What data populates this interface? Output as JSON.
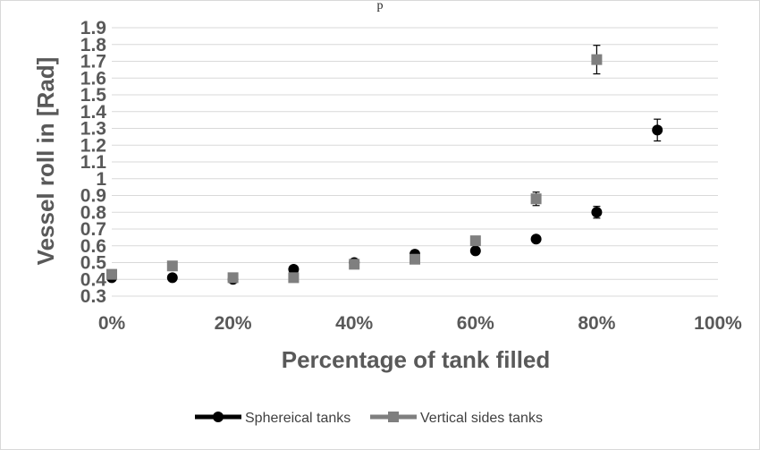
{
  "chart_data": {
    "type": "scatter",
    "title_fragment": "p",
    "xlabel": "Percentage of tank filled",
    "ylabel": "Vessel roll in [Rad]",
    "xlim": [
      0,
      100
    ],
    "ylim": [
      0.3,
      1.9
    ],
    "x_ticks": [
      "0%",
      "20%",
      "40%",
      "60%",
      "80%",
      "100%"
    ],
    "y_ticks": [
      "0.3",
      "0.4",
      "0.5",
      "0.6",
      "0.7",
      "0.8",
      "0.9",
      "1",
      "1.1",
      "1.2",
      "1.3",
      "1.4",
      "1.5",
      "1.6",
      "1.7",
      "1.8",
      "1.9"
    ],
    "grid": "horizontal",
    "legend_position": "bottom",
    "series": [
      {
        "name": "Sphereical tanks",
        "marker": "circle",
        "color": "#000000",
        "points": [
          {
            "x": 0,
            "y": 0.41
          },
          {
            "x": 10,
            "y": 0.41
          },
          {
            "x": 20,
            "y": 0.4
          },
          {
            "x": 30,
            "y": 0.46
          },
          {
            "x": 40,
            "y": 0.5
          },
          {
            "x": 50,
            "y": 0.55
          },
          {
            "x": 60,
            "y": 0.57
          },
          {
            "x": 70,
            "y": 0.64
          },
          {
            "x": 80,
            "y": 0.8,
            "err": 0.035
          },
          {
            "x": 90,
            "y": 1.29,
            "err": 0.065
          }
        ]
      },
      {
        "name": "Vertical sides tanks",
        "marker": "square",
        "color": "#7f7f7f",
        "points": [
          {
            "x": 0,
            "y": 0.43
          },
          {
            "x": 10,
            "y": 0.48
          },
          {
            "x": 20,
            "y": 0.41
          },
          {
            "x": 30,
            "y": 0.41
          },
          {
            "x": 40,
            "y": 0.49
          },
          {
            "x": 50,
            "y": 0.52
          },
          {
            "x": 60,
            "y": 0.63
          },
          {
            "x": 70,
            "y": 0.88,
            "err": 0.04
          },
          {
            "x": 80,
            "y": 1.71,
            "err": 0.085
          }
        ]
      }
    ]
  }
}
